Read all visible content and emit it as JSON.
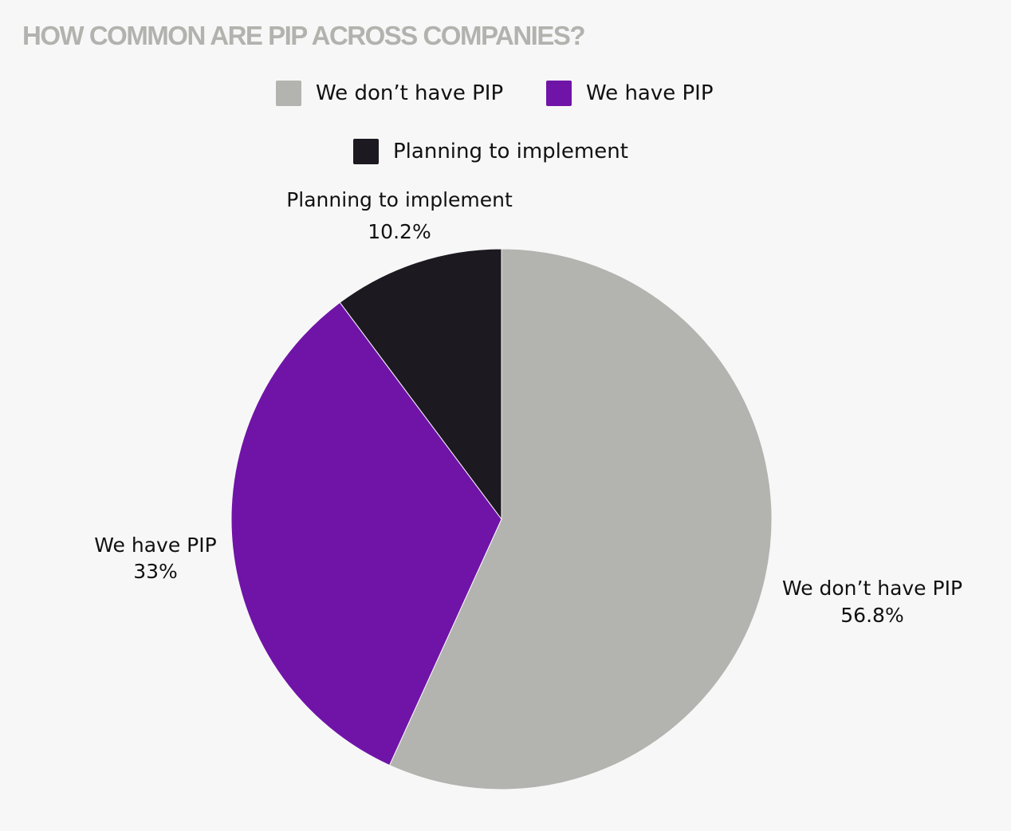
{
  "chart_data": {
    "type": "pie",
    "title": "HOW COMMON ARE PIP ACROSS COMPANIES?",
    "legend_position": "top",
    "slices": [
      {
        "label": "We don’t have PIP",
        "value": 56.8,
        "value_label": "56.8%",
        "color": "#b3b3af"
      },
      {
        "label": "We have PIP",
        "value": 33,
        "value_label": "33%",
        "color": "#7014a8"
      },
      {
        "label": "Planning to implement",
        "value": 10.2,
        "value_label": "10.2%",
        "color": "#1c1921"
      }
    ]
  }
}
